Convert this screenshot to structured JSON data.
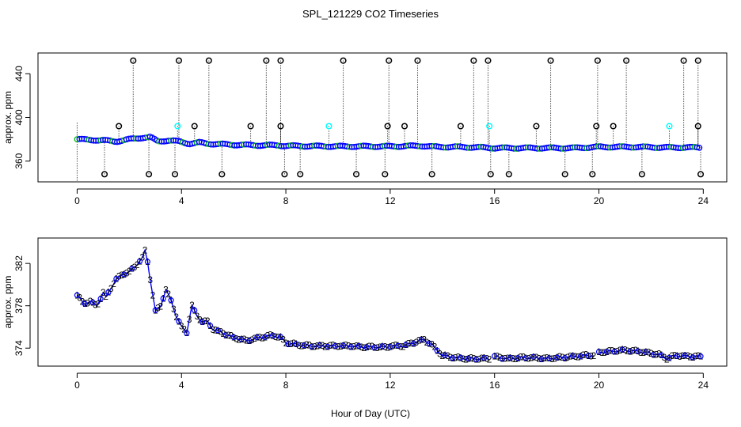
{
  "figure": {
    "title": "SPL_121229  CO2 Timeseries",
    "xlabel": "Hour of Day (UTC)"
  },
  "colors": {
    "axis": "#000000",
    "series_blue": "#0000ff",
    "series_green": "#00c000",
    "series_red": "#ff0000",
    "series_magenta": "#cc00cc",
    "series_cyan": "#00ffff",
    "outlier": "#000000",
    "droplines": "#000000"
  },
  "chart_data": [
    {
      "type": "scatter",
      "panel": "top",
      "title": "",
      "xlabel": "",
      "ylabel": "approx. ppm",
      "xlim": [
        -1.5,
        24.9
      ],
      "ylim": [
        341,
        459
      ],
      "x_ticks": [
        0,
        4,
        8,
        12,
        16,
        20,
        24
      ],
      "x_tick_labels": [
        "0",
        "4",
        "8",
        "12",
        "16",
        "20",
        "24"
      ],
      "y_ticks": [
        360,
        400,
        440
      ],
      "y_tick_labels": [
        "360",
        "400",
        "440"
      ],
      "baseline": [
        [
          0,
          380
        ],
        [
          0.5,
          379.5
        ],
        [
          1,
          379
        ],
        [
          1.5,
          378
        ],
        [
          2,
          380
        ],
        [
          2.5,
          381.5
        ],
        [
          2.8,
          382
        ],
        [
          3.1,
          378
        ],
        [
          3.5,
          379
        ],
        [
          3.9,
          378
        ],
        [
          4.3,
          376
        ],
        [
          4.7,
          377
        ],
        [
          5,
          376
        ],
        [
          6,
          375
        ],
        [
          7,
          374.5
        ],
        [
          7.7,
          374.5
        ],
        [
          8,
          374
        ],
        [
          10,
          373.5
        ],
        [
          12,
          373.5
        ],
        [
          13.2,
          374
        ],
        [
          13.8,
          373
        ],
        [
          14.5,
          373
        ],
        [
          15.5,
          372.5
        ],
        [
          16,
          372
        ],
        [
          18,
          372
        ],
        [
          19,
          372
        ],
        [
          20,
          373
        ],
        [
          21.5,
          373
        ],
        [
          22.5,
          372.5
        ],
        [
          23.8,
          372.5
        ]
      ],
      "outliers_high": [
        2.15,
        3.9,
        5.05,
        7.25,
        7.8,
        10.2,
        11.95,
        13.05,
        15.2,
        15.75,
        18.15,
        19.95,
        21.05,
        23.25,
        23.8
      ],
      "outliers_high_value": 452,
      "outliers_low": [
        1.05,
        2.75,
        3.75,
        5.55,
        7.95,
        8.55,
        10.7,
        11.8,
        13.6,
        15.85,
        16.55,
        18.7,
        19.75,
        21.65,
        23.9
      ],
      "outliers_low_value": 348,
      "outliers_mid": [
        1.6,
        3.85,
        4.5,
        6.65,
        7.8,
        9.65,
        11.9,
        12.55,
        14.7,
        15.8,
        17.6,
        19.9,
        20.55,
        22.7,
        23.8
      ],
      "outliers_mid_value": 392
    },
    {
      "type": "line",
      "panel": "bottom",
      "title": "",
      "xlabel": "Hour of Day (UTC)",
      "ylabel": "approx. ppm",
      "xlim": [
        -1.5,
        24.9
      ],
      "ylim": [
        372.3,
        384.4
      ],
      "x_ticks": [
        0,
        4,
        8,
        12,
        16,
        20,
        24
      ],
      "x_tick_labels": [
        "0",
        "4",
        "8",
        "12",
        "16",
        "20",
        "24"
      ],
      "y_ticks": [
        374,
        378,
        382
      ],
      "y_tick_labels": [
        "374",
        "378",
        "382"
      ],
      "point_labels": [
        "1",
        "2",
        "3"
      ],
      "series": [
        {
          "name": "CO2",
          "x": [
            0,
            0.25,
            0.5,
            0.75,
            1,
            1.1,
            1.25,
            1.5,
            1.75,
            2,
            2.25,
            2.5,
            2.6,
            2.7,
            2.8,
            3,
            3.2,
            3.4,
            3.6,
            3.8,
            4,
            4.2,
            4.4,
            4.6,
            4.8,
            5,
            5.2,
            5.5,
            6,
            6.5,
            7,
            7.5,
            7.8,
            8,
            8.5,
            9,
            9.5,
            10,
            10.5,
            11,
            11.5,
            11.95
          ],
          "y": [
            379,
            378.2,
            378.4,
            378,
            379.2,
            378.8,
            379.5,
            380.5,
            381,
            381.2,
            381.8,
            382.5,
            383.2,
            382.2,
            380.5,
            377.5,
            378,
            379.5,
            378.5,
            377,
            376,
            375.5,
            378,
            377,
            376.5,
            376.5,
            375.8,
            375.5,
            375,
            374.7,
            375,
            375.2,
            375,
            374.5,
            374.3,
            374.2,
            374.2,
            374.2,
            374.2,
            374.1,
            374.1,
            374.1
          ],
          "x2": [
            12,
            12.5,
            13,
            13.3,
            13.6,
            13.8,
            14,
            14.5,
            15,
            15.5,
            15.8
          ],
          "y2": [
            374.2,
            374.2,
            374.6,
            374.8,
            374.3,
            373.8,
            373.3,
            373.1,
            373,
            373,
            373
          ],
          "x3": [
            16,
            16.5,
            17,
            17.5,
            18,
            18.5,
            19,
            19.5,
            19.8
          ],
          "y3": [
            373.2,
            373,
            373.1,
            373.1,
            373,
            373.1,
            373.2,
            373.3,
            373.3
          ],
          "x4": [
            20,
            20.5,
            21,
            21.5,
            22,
            22.3,
            22.6,
            22.8,
            23,
            23.5,
            23.9
          ],
          "y4": [
            373.6,
            373.7,
            373.8,
            373.7,
            373.5,
            373.4,
            373,
            373.2,
            373.3,
            373.2,
            373.2
          ]
        }
      ]
    }
  ]
}
